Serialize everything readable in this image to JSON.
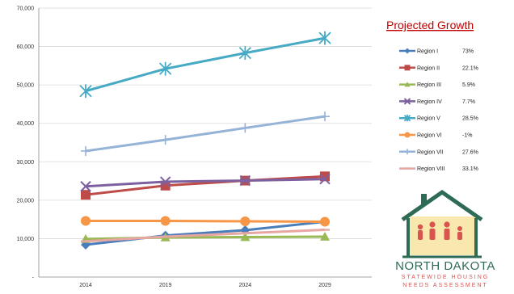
{
  "chart_data": {
    "type": "line",
    "title": "",
    "xlabel": "",
    "ylabel": "",
    "categories": [
      "2014",
      "2019",
      "2024",
      "2029"
    ],
    "ylim": [
      0,
      70000
    ],
    "y_ticks": [
      "-",
      "10,000",
      "20,000",
      "30,000",
      "40,000",
      "50,000",
      "60,000",
      "70,000"
    ],
    "grid": true,
    "legend_title": "Projected Growth",
    "legend_position": "right",
    "series": [
      {
        "name": "Region I",
        "growth": "73%",
        "color": "#4a7ebb",
        "marker": "diamond",
        "values": [
          8400,
          10800,
          12200,
          14400
        ]
      },
      {
        "name": "Region II",
        "growth": "22.1%",
        "color": "#be4b48",
        "marker": "square",
        "values": [
          21400,
          23800,
          25100,
          26200
        ]
      },
      {
        "name": "Region III",
        "growth": "5.9%",
        "color": "#98b954",
        "marker": "triangle",
        "values": [
          9900,
          10300,
          10400,
          10500
        ]
      },
      {
        "name": "Region IV",
        "growth": "7.7%",
        "color": "#7d60a0",
        "marker": "x",
        "values": [
          23600,
          24800,
          25100,
          25500
        ]
      },
      {
        "name": "Region V",
        "growth": "28.5%",
        "color": "#46aac5",
        "marker": "star",
        "values": [
          48400,
          54200,
          58300,
          62200
        ]
      },
      {
        "name": "Region VI",
        "growth": "-1%",
        "color": "#f79646",
        "marker": "circle",
        "values": [
          14600,
          14600,
          14500,
          14400
        ]
      },
      {
        "name": "Region VII",
        "growth": "27.6%",
        "color": "#95b3d7",
        "marker": "plus",
        "values": [
          32800,
          35700,
          38800,
          41800
        ]
      },
      {
        "name": "Region VIII",
        "growth": "33.1%",
        "color": "#e6a6a2",
        "marker": "dash",
        "values": [
          9300,
          10500,
          11400,
          12300
        ]
      }
    ]
  },
  "logo": {
    "name": "NORTH DAKOTA",
    "line1": "STATEWIDE HOUSING",
    "line2": "NEEDS ASSESSMENT"
  }
}
